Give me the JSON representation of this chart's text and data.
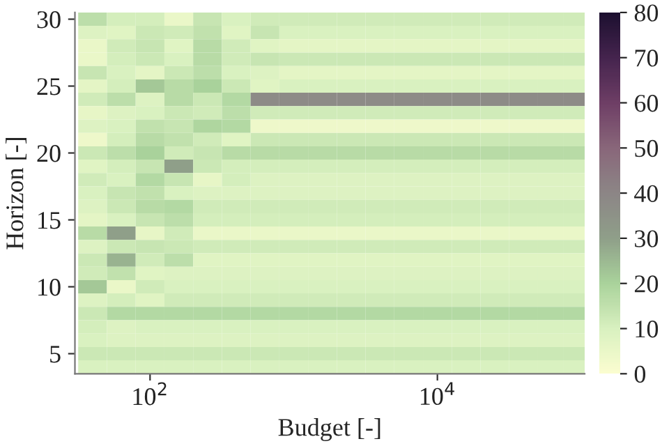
{
  "chart_data": {
    "type": "heatmap",
    "xlabel": "Budget [-]",
    "ylabel": "Horizon [-]",
    "x": [
      39.8,
      63.1,
      100,
      158.5,
      251.2,
      398.1,
      631,
      1000,
      1585,
      2512,
      3981,
      6310,
      10000,
      15849,
      25119,
      39811,
      63096,
      89125
    ],
    "y_categories": [
      "30",
      null,
      null,
      null,
      null,
      "25",
      null,
      null,
      null,
      null,
      "20",
      null,
      null,
      null,
      null,
      "15",
      null,
      null,
      null,
      null,
      "10",
      null,
      null,
      null,
      null,
      "5",
      null
    ],
    "log": "x",
    "xlim": [
      30,
      106000
    ],
    "xticks": [
      {
        "value": 100,
        "label": "10$^{2}$"
      },
      {
        "value": 10000,
        "label": "10$^{4}$"
      }
    ],
    "clim": [
      0,
      80
    ],
    "cticks": [
      0,
      10,
      20,
      30,
      40,
      50,
      60,
      70,
      80
    ],
    "cells": [
      [
        16,
        11,
        11,
        5,
        14,
        10,
        12,
        12,
        12,
        12,
        12,
        12,
        12,
        12,
        12,
        12,
        12,
        12
      ],
      [
        9,
        8,
        13,
        12,
        15,
        8,
        14,
        10,
        10,
        10,
        10,
        10,
        10,
        10,
        10,
        10,
        10,
        10
      ],
      [
        5,
        12,
        14,
        8,
        17,
        12,
        8,
        7,
        7,
        7,
        7,
        7,
        7,
        7,
        7,
        7,
        7,
        7
      ],
      [
        5,
        11,
        13,
        10,
        17,
        12,
        14,
        13,
        13,
        13,
        13,
        13,
        13,
        13,
        13,
        13,
        13,
        13
      ],
      [
        14,
        10,
        7,
        13,
        16,
        10,
        9,
        7,
        7,
        7,
        7,
        7,
        7,
        7,
        7,
        7,
        7,
        7
      ],
      [
        7,
        11,
        22,
        17,
        20,
        13,
        8,
        10,
        10,
        10,
        10,
        10,
        10,
        10,
        10,
        10,
        10,
        10
      ],
      [
        12,
        16,
        9,
        17,
        13,
        18,
        38,
        38,
        38,
        38,
        38,
        38,
        38,
        38,
        38,
        38,
        38,
        38
      ],
      [
        6,
        9,
        10,
        13,
        12,
        16,
        12,
        12,
        12,
        12,
        12,
        12,
        12,
        12,
        12,
        12,
        12,
        12
      ],
      [
        9,
        10,
        15,
        14,
        19,
        18,
        4,
        4,
        4,
        4,
        4,
        4,
        4,
        4,
        4,
        4,
        4,
        4
      ],
      [
        4,
        11,
        17,
        15,
        12,
        8,
        13,
        13,
        13,
        13,
        13,
        13,
        13,
        13,
        13,
        13,
        13,
        13
      ],
      [
        13,
        16,
        20,
        12,
        14,
        17,
        17,
        17,
        17,
        17,
        17,
        17,
        17,
        17,
        17,
        17,
        17,
        17
      ],
      [
        8,
        11,
        14,
        30,
        13,
        11,
        11,
        11,
        11,
        11,
        11,
        11,
        11,
        11,
        11,
        11,
        11,
        11
      ],
      [
        12,
        10,
        18,
        14,
        6,
        11,
        9,
        9,
        9,
        9,
        9,
        9,
        9,
        9,
        9,
        9,
        9,
        9
      ],
      [
        10,
        14,
        15,
        10,
        9,
        9,
        9,
        9,
        9,
        9,
        9,
        9,
        9,
        9,
        9,
        9,
        9,
        9
      ],
      [
        9,
        13,
        17,
        18,
        12,
        12,
        12,
        12,
        12,
        12,
        12,
        12,
        12,
        12,
        12,
        12,
        12,
        12
      ],
      [
        7,
        10,
        14,
        16,
        11,
        11,
        11,
        11,
        11,
        11,
        11,
        11,
        11,
        11,
        11,
        11,
        11,
        11
      ],
      [
        17,
        30,
        6,
        12,
        5,
        5,
        5,
        5,
        5,
        5,
        5,
        5,
        5,
        5,
        5,
        5,
        5,
        5
      ],
      [
        9,
        13,
        14,
        13,
        12,
        12,
        12,
        12,
        12,
        12,
        12,
        12,
        12,
        12,
        12,
        12,
        12,
        12
      ],
      [
        13,
        26,
        12,
        16,
        8,
        8,
        8,
        8,
        8,
        8,
        8,
        8,
        8,
        8,
        8,
        8,
        8,
        8
      ],
      [
        12,
        15,
        8,
        9,
        9,
        9,
        9,
        9,
        9,
        9,
        9,
        9,
        9,
        9,
        9,
        9,
        9,
        9
      ],
      [
        22,
        5,
        12,
        10,
        10,
        10,
        10,
        10,
        10,
        10,
        10,
        10,
        10,
        10,
        10,
        10,
        10,
        10
      ],
      [
        9,
        11,
        8,
        12,
        12,
        12,
        12,
        12,
        12,
        12,
        12,
        12,
        12,
        12,
        12,
        12,
        12,
        12
      ],
      [
        13,
        18,
        18,
        18,
        18,
        18,
        18,
        18,
        18,
        18,
        18,
        18,
        18,
        18,
        18,
        18,
        18,
        18
      ],
      [
        11,
        9,
        10,
        10,
        10,
        10,
        10,
        10,
        10,
        10,
        10,
        10,
        10,
        10,
        10,
        10,
        10,
        10
      ],
      [
        10,
        9,
        9,
        9,
        9,
        9,
        9,
        9,
        9,
        9,
        9,
        9,
        9,
        9,
        9,
        9,
        9,
        9
      ],
      [
        13,
        13,
        13,
        13,
        13,
        13,
        13,
        13,
        13,
        13,
        13,
        13,
        13,
        13,
        13,
        13,
        13,
        13
      ],
      [
        10,
        10,
        10,
        10,
        10,
        10,
        10,
        10,
        10,
        10,
        10,
        10,
        10,
        10,
        10,
        10,
        10,
        10
      ]
    ]
  }
}
